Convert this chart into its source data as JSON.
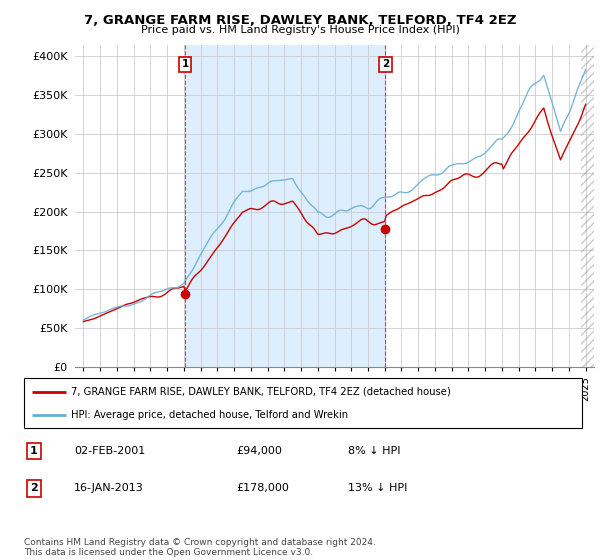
{
  "title": "7, GRANGE FARM RISE, DAWLEY BANK, TELFORD, TF4 2EZ",
  "subtitle": "Price paid vs. HM Land Registry's House Price Index (HPI)",
  "ylabel_ticks": [
    "£0",
    "£50K",
    "£100K",
    "£150K",
    "£200K",
    "£250K",
    "£300K",
    "£350K",
    "£400K"
  ],
  "ytick_values": [
    0,
    50000,
    100000,
    150000,
    200000,
    250000,
    300000,
    350000,
    400000
  ],
  "ylim": [
    0,
    415000
  ],
  "hpi_color": "#6baed6",
  "price_color": "#cc0000",
  "vline_color": "#cc0000",
  "shade_color": "#ddeeff",
  "background_color": "#ffffff",
  "grid_color": "#cccccc",
  "legend_label_price": "7, GRANGE FARM RISE, DAWLEY BANK, TELFORD, TF4 2EZ (detached house)",
  "legend_label_hpi": "HPI: Average price, detached house, Telford and Wrekin",
  "annotation1_label": "1",
  "annotation1_date": "02-FEB-2001",
  "annotation1_price": "£94,000",
  "annotation1_pct": "8% ↓ HPI",
  "annotation2_label": "2",
  "annotation2_date": "16-JAN-2013",
  "annotation2_price": "£178,000",
  "annotation2_pct": "13% ↓ HPI",
  "footnote": "Contains HM Land Registry data © Crown copyright and database right 2024.\nThis data is licensed under the Open Government Licence v3.0.",
  "sale1_year": 2001.085,
  "sale1_value": 94000,
  "sale2_year": 2013.04,
  "sale2_value": 178000
}
